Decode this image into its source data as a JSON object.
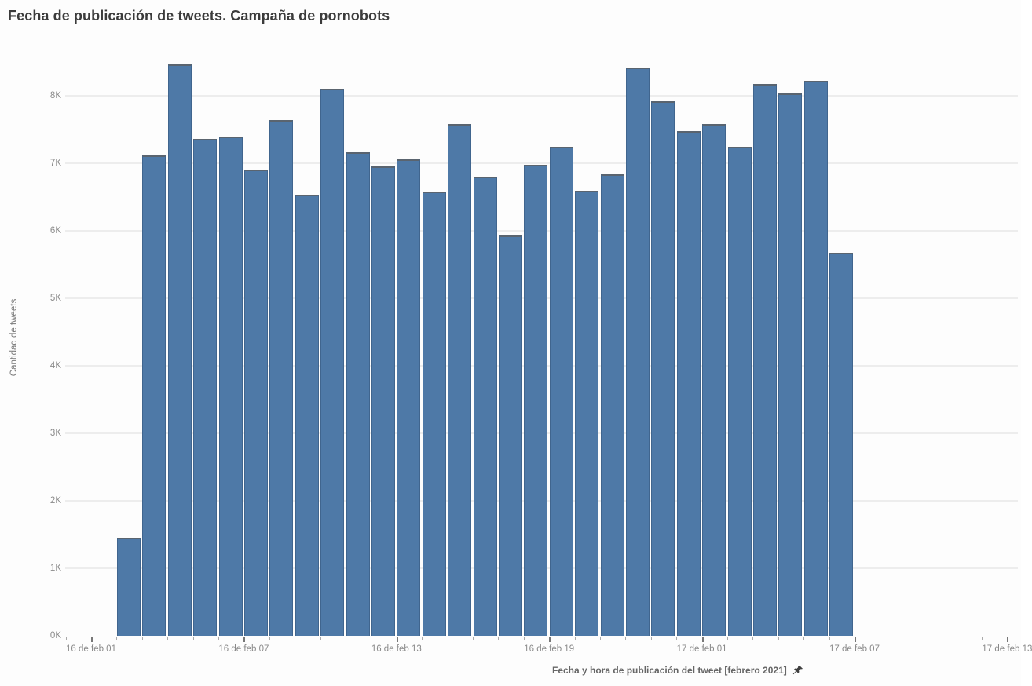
{
  "title": "Fecha de publicación de tweets. Campaña de pornobots",
  "chart_data": {
    "type": "bar",
    "title": "Fecha de publicación de tweets. Campaña de pornobots",
    "xlabel": "Fecha y hora de publicación del tweet [febrero 2021]",
    "ylabel": "Cantidad de tweets",
    "categories": [
      "16 feb 02:00",
      "16 feb 03:00",
      "16 feb 04:00",
      "16 feb 05:00",
      "16 feb 06:00",
      "16 feb 07:00",
      "16 feb 08:00",
      "16 feb 09:00",
      "16 feb 10:00",
      "16 feb 11:00",
      "16 feb 12:00",
      "16 feb 13:00",
      "16 feb 14:00",
      "16 feb 15:00",
      "16 feb 16:00",
      "16 feb 17:00",
      "16 feb 18:00",
      "16 feb 19:00",
      "16 feb 20:00",
      "16 feb 21:00",
      "16 feb 22:00",
      "16 feb 23:00",
      "17 feb 00:00",
      "17 feb 01:00",
      "17 feb 02:00",
      "17 feb 03:00",
      "17 feb 04:00",
      "17 feb 05:00",
      "17 feb 06:00"
    ],
    "values": [
      1450,
      7120,
      8470,
      7360,
      7400,
      6910,
      7640,
      6530,
      8100,
      7160,
      6950,
      7060,
      6580,
      7580,
      6800,
      5930,
      6980,
      7240,
      6590,
      6840,
      8420,
      7920,
      7480,
      7580,
      7240,
      8170,
      8030,
      8220,
      5670
    ],
    "ylim": [
      0,
      8600
    ],
    "grid": true,
    "legend": false,
    "y_tick_labels": [
      "0K",
      "1K",
      "2K",
      "3K",
      "4K",
      "5K",
      "6K",
      "7K",
      "8K"
    ],
    "x_ticks": [
      {
        "label": "16 de feb 01",
        "hour": 0
      },
      {
        "label": "16 de feb 07",
        "hour": 6
      },
      {
        "label": "16 de feb 13",
        "hour": 12
      },
      {
        "label": "16 de feb 19",
        "hour": 18
      },
      {
        "label": "17 de feb 01",
        "hour": 24
      },
      {
        "label": "17 de feb 07",
        "hour": 30
      },
      {
        "label": "17 de feb 13",
        "hour": 36
      }
    ],
    "colors": {
      "bar_fill": "#4e79a7",
      "bar_top_edge": "#5a646f",
      "gridline": "#ededed",
      "tick_label": "#8a8a8a",
      "title_text": "#3b3b3b"
    }
  },
  "icons": {
    "pin": "pin-icon"
  }
}
